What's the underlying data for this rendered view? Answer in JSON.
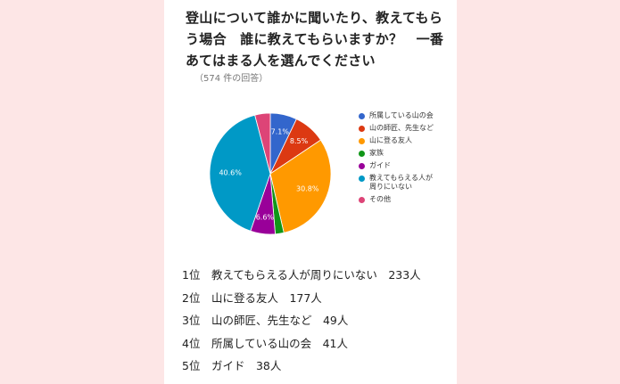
{
  "survey": {
    "title": "登山について誰かに聞いたり、教えてもらう場合　誰に教えてもらいますか？　一番あてはまる人を選んでください",
    "responses": "（574 件の回答）"
  },
  "chart_data": {
    "type": "pie",
    "total_responses": 574,
    "slices": [
      {
        "label": "所属している山の会",
        "percent": 7.1,
        "value_label": "7.1%",
        "color": "#3366cc"
      },
      {
        "label": "山の師匠、先生など",
        "percent": 8.5,
        "value_label": "8.5%",
        "color": "#dc3912"
      },
      {
        "label": "山に登る友人",
        "percent": 30.8,
        "value_label": "30.8%",
        "color": "#ff9900"
      },
      {
        "label": "家族",
        "percent": 2.3,
        "value_label": "",
        "color": "#109618"
      },
      {
        "label": "ガイド",
        "percent": 6.6,
        "value_label": "6.6%",
        "color": "#990099"
      },
      {
        "label": "教えてもらえる人が周りにいない",
        "percent": 40.6,
        "value_label": "40.6%",
        "color": "#0099c6"
      },
      {
        "label": "その他",
        "percent": 4.1,
        "value_label": "",
        "color": "#dd4477"
      }
    ],
    "legend": [
      {
        "lines": [
          "所属している山の会"
        ],
        "color": "#3366cc"
      },
      {
        "lines": [
          "山の師匠、先生など"
        ],
        "color": "#dc3912"
      },
      {
        "lines": [
          "山に登る友人"
        ],
        "color": "#ff9900"
      },
      {
        "lines": [
          "家族"
        ],
        "color": "#109618"
      },
      {
        "lines": [
          "ガイド"
        ],
        "color": "#990099"
      },
      {
        "lines": [
          "教えてもらえる人が",
          "周りにいない"
        ],
        "color": "#0099c6"
      },
      {
        "lines": [
          "その他"
        ],
        "color": "#dd4477"
      }
    ],
    "legend_position": "right"
  },
  "ranking": [
    "1位　教えてもらえる人が周りにいない　233人",
    "2位　山に登る友人　177人",
    "3位　山の師匠、先生など　49人",
    "4位　所属している山の会　41人",
    "5位　ガイド　38人"
  ]
}
